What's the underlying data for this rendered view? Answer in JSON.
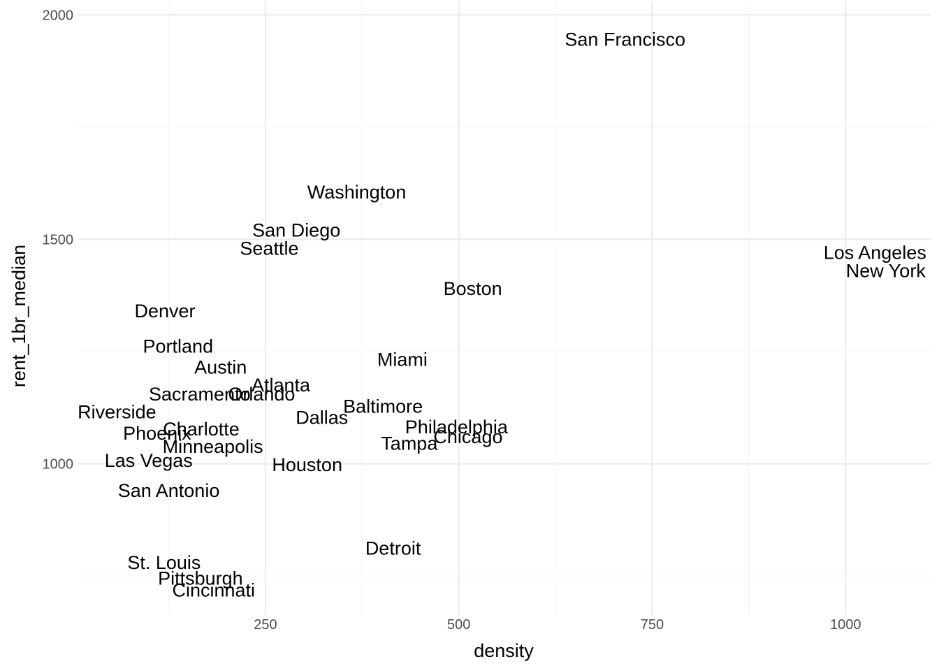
{
  "chart_data": {
    "type": "scatter",
    "geom": "text",
    "title": "",
    "xlabel": "density",
    "ylabel": "rent_1br_median",
    "xlim": [
      8,
      1110
    ],
    "ylim": [
      663,
      2030
    ],
    "x_major_ticks": [
      250,
      500,
      750,
      1000
    ],
    "y_major_ticks": [
      1000,
      1500,
      2000
    ],
    "x_minor_ticks": [
      125,
      375,
      625,
      875
    ],
    "y_minor_ticks": [
      750,
      1250,
      1750
    ],
    "grid": true,
    "legend": "none",
    "colors": {
      "grid_major": "#ebebeb",
      "grid_minor": "#f4f4f4",
      "text": "#000000",
      "tick_text": "#4d4d4d"
    },
    "points": [
      {
        "label": "San Francisco",
        "x": 715,
        "y": 1945
      },
      {
        "label": "Washington",
        "x": 368,
        "y": 1605
      },
      {
        "label": "San Diego",
        "x": 290,
        "y": 1520
      },
      {
        "label": "Seattle",
        "x": 255,
        "y": 1480
      },
      {
        "label": "Los Angeles",
        "x": 1038,
        "y": 1470
      },
      {
        "label": "New York",
        "x": 1052,
        "y": 1430
      },
      {
        "label": "Boston",
        "x": 518,
        "y": 1390
      },
      {
        "label": "Denver",
        "x": 120,
        "y": 1340
      },
      {
        "label": "Portland",
        "x": 137,
        "y": 1262
      },
      {
        "label": "Miami",
        "x": 427,
        "y": 1232
      },
      {
        "label": "Austin",
        "x": 192,
        "y": 1215
      },
      {
        "label": "Atlanta",
        "x": 270,
        "y": 1175
      },
      {
        "label": "Sacramento",
        "x": 165,
        "y": 1155
      },
      {
        "label": "Orlando",
        "x": 245,
        "y": 1155
      },
      {
        "label": "Baltimore",
        "x": 402,
        "y": 1128
      },
      {
        "label": "Riverside",
        "x": 58,
        "y": 1115
      },
      {
        "label": "Dallas",
        "x": 323,
        "y": 1103
      },
      {
        "label": "Philadelphia",
        "x": 497,
        "y": 1082
      },
      {
        "label": "Charlotte",
        "x": 167,
        "y": 1077
      },
      {
        "label": "Chicago",
        "x": 512,
        "y": 1060
      },
      {
        "label": "Phoenix",
        "x": 110,
        "y": 1068
      },
      {
        "label": "Tampa",
        "x": 436,
        "y": 1045
      },
      {
        "label": "Minneapolis",
        "x": 182,
        "y": 1038
      },
      {
        "label": "Las Vegas",
        "x": 99,
        "y": 1007
      },
      {
        "label": "Houston",
        "x": 304,
        "y": 998
      },
      {
        "label": "San Antonio",
        "x": 125,
        "y": 940
      },
      {
        "label": "Detroit",
        "x": 415,
        "y": 812
      },
      {
        "label": "St. Louis",
        "x": 119,
        "y": 780
      },
      {
        "label": "Pittsburgh",
        "x": 166,
        "y": 745
      },
      {
        "label": "Cincinnati",
        "x": 183,
        "y": 718
      }
    ]
  }
}
